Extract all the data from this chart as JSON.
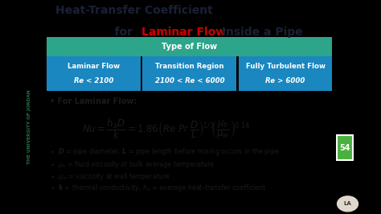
{
  "title_line1": "Heat-Transfer Coefficient",
  "title_line2_prefix": "    for ",
  "title_line2_red": "Laminar Flow",
  "title_line2_suffix": " Inside a Pipe",
  "table_header": "Type of Flow",
  "col1_title": "Laminar Flow",
  "col1_sub": "Re < 2100",
  "col2_title": "Transition Region",
  "col2_sub": "2100 < Re < 6000",
  "col3_title": "Fully Turbulent Flow",
  "col3_sub": "Re > 6000",
  "for_laminar": "For Laminar Flow:",
  "header_bg": "#2da58a",
  "cell_bg": "#1a87c0",
  "sidebar_text": "THE UNIVERSITY OF JORDAN",
  "page_num": "54",
  "outer_bg": "#3a5c42",
  "sidebar_strip_bg": "#1a1a1a",
  "white_bg": "#ffffff",
  "dark_green_right": "#3a5c42",
  "page_box_bg": "#4ab040",
  "title_dark": "#1a2035",
  "text_dark": "#1a1a1a",
  "teal_dark": "#1d8a72"
}
